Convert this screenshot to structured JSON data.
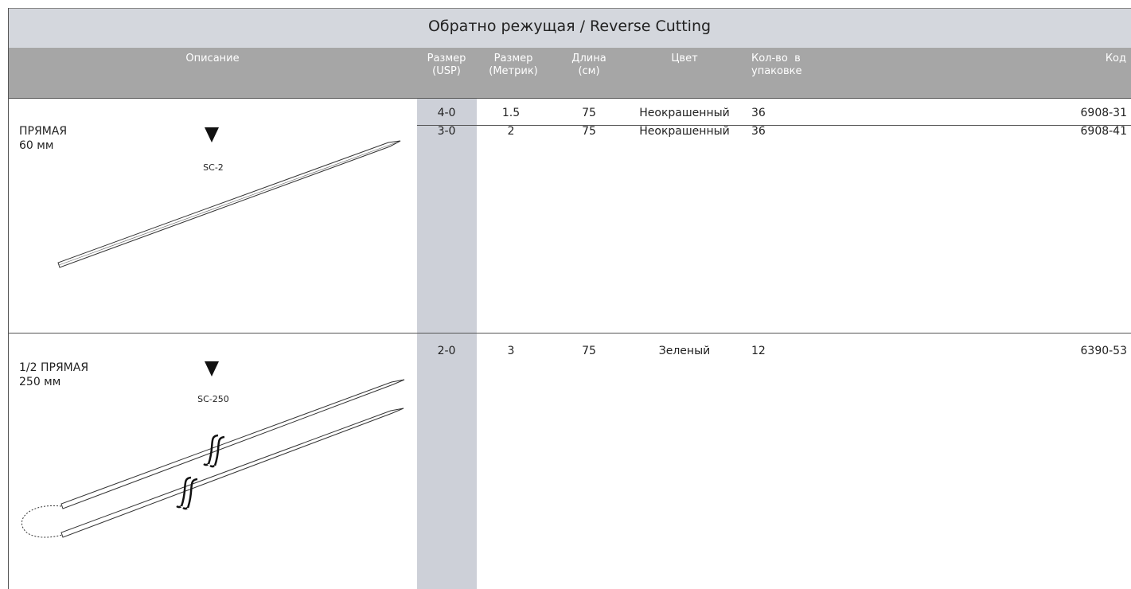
{
  "title": "Обратно режущая / Reverse Cutting",
  "table": {
    "headers": [
      [
        "Описание"
      ],
      [
        "Размер",
        "(USP)"
      ],
      [
        "Размер",
        "(Метрик)"
      ],
      [
        "Длина",
        "(см)"
      ],
      [
        "Цвет"
      ],
      [
        "Кол-во  в",
        "упаковке"
      ],
      [
        "Код"
      ]
    ],
    "groups": [
      {
        "name": "ПРЯМАЯ",
        "length": "60 мм",
        "needle": "SC-2",
        "rows": [
          [
            "4-0",
            "1.5",
            "75",
            "Неокрашенный",
            "36",
            "6908-31"
          ],
          [
            "3-0",
            "2",
            "75",
            "Неокрашенный",
            "36",
            "6908-41"
          ]
        ]
      },
      {
        "name": "1/2 ПРЯМАЯ",
        "length": "250 мм",
        "needle": "SC-250",
        "rows": [
          [
            "2-0",
            "3",
            "75",
            "Зеленый",
            "12",
            "6390-53"
          ]
        ]
      }
    ]
  }
}
